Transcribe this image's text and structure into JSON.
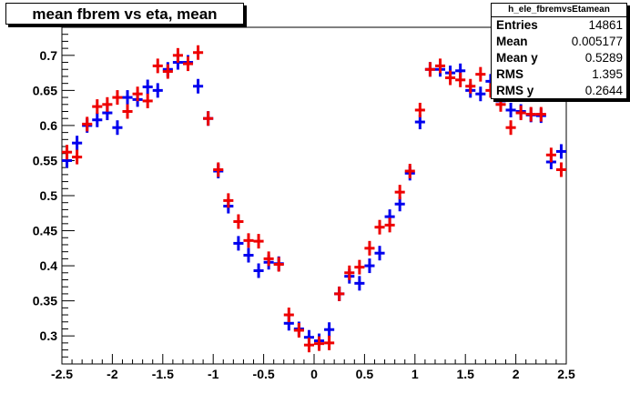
{
  "title": "mean fbrem vs eta, mean",
  "stats": {
    "name": "h_ele_fbremvsEtamean",
    "rows": [
      {
        "label": "Entries",
        "value": "14861"
      },
      {
        "label": "Mean",
        "value": "0.005177"
      },
      {
        "label": "Mean y",
        "value": "0.5289"
      },
      {
        "label": "RMS",
        "value": "1.395"
      },
      {
        "label": "RMS y",
        "value": "0.2644"
      }
    ]
  },
  "colors": {
    "series1": "#0000ee",
    "series2": "#ee0000",
    "axis": "#000000",
    "background": "#ffffff"
  },
  "chart_data": {
    "type": "scatter",
    "title": "mean fbrem vs eta, mean",
    "xlabel": "",
    "ylabel": "",
    "xlim": [
      -2.5,
      2.5
    ],
    "ylim": [
      0.26,
      0.74
    ],
    "xticks": [
      "-2.5",
      "-2",
      "-1.5",
      "-1",
      "-0.5",
      "0",
      "0.5",
      "1",
      "1.5",
      "2",
      "2.5"
    ],
    "yticks": [
      "0.3",
      "0.35",
      "0.4",
      "0.45",
      "0.5",
      "0.55",
      "0.6",
      "0.65",
      "0.7"
    ],
    "bin_width": 0.1,
    "x": [
      -2.45,
      -2.35,
      -2.25,
      -2.15,
      -2.05,
      -1.95,
      -1.85,
      -1.75,
      -1.65,
      -1.55,
      -1.45,
      -1.35,
      -1.25,
      -1.15,
      -1.05,
      -0.95,
      -0.85,
      -0.75,
      -0.65,
      -0.55,
      -0.45,
      -0.35,
      -0.25,
      -0.15,
      -0.05,
      0.05,
      0.15,
      0.25,
      0.35,
      0.45,
      0.55,
      0.65,
      0.75,
      0.85,
      0.95,
      1.05,
      1.15,
      1.25,
      1.35,
      1.45,
      1.55,
      1.65,
      1.75,
      1.85,
      1.95,
      2.05,
      2.15,
      2.25,
      2.35,
      2.45
    ],
    "series": [
      {
        "values": [
          0.55,
          0.575,
          0.6,
          0.608,
          0.618,
          0.597,
          0.64,
          0.637,
          0.655,
          0.65,
          0.68,
          0.69,
          0.69,
          0.656,
          0.61,
          0.535,
          0.485,
          0.432,
          0.415,
          0.393,
          0.405,
          0.403,
          0.318,
          0.31,
          0.298,
          0.293,
          0.309,
          0.36,
          0.385,
          0.375,
          0.4,
          0.418,
          0.47,
          0.488,
          0.532,
          0.605,
          0.68,
          0.68,
          0.675,
          0.678,
          0.65,
          0.645,
          0.663,
          0.635,
          0.622,
          0.62,
          0.615,
          0.614,
          0.548,
          0.563
        ]
      },
      {
        "values": [
          0.562,
          0.555,
          0.602,
          0.627,
          0.63,
          0.64,
          0.62,
          0.645,
          0.635,
          0.685,
          0.677,
          0.7,
          0.688,
          0.704,
          0.61,
          0.537,
          0.493,
          0.463,
          0.436,
          0.435,
          0.41,
          0.402,
          0.33,
          0.308,
          0.287,
          0.289,
          0.29,
          0.36,
          0.39,
          0.398,
          0.425,
          0.455,
          0.458,
          0.505,
          0.535,
          0.622,
          0.68,
          0.685,
          0.668,
          0.665,
          0.656,
          0.673,
          0.65,
          0.63,
          0.597,
          0.618,
          0.616,
          0.616,
          0.558,
          0.537
        ]
      }
    ]
  }
}
